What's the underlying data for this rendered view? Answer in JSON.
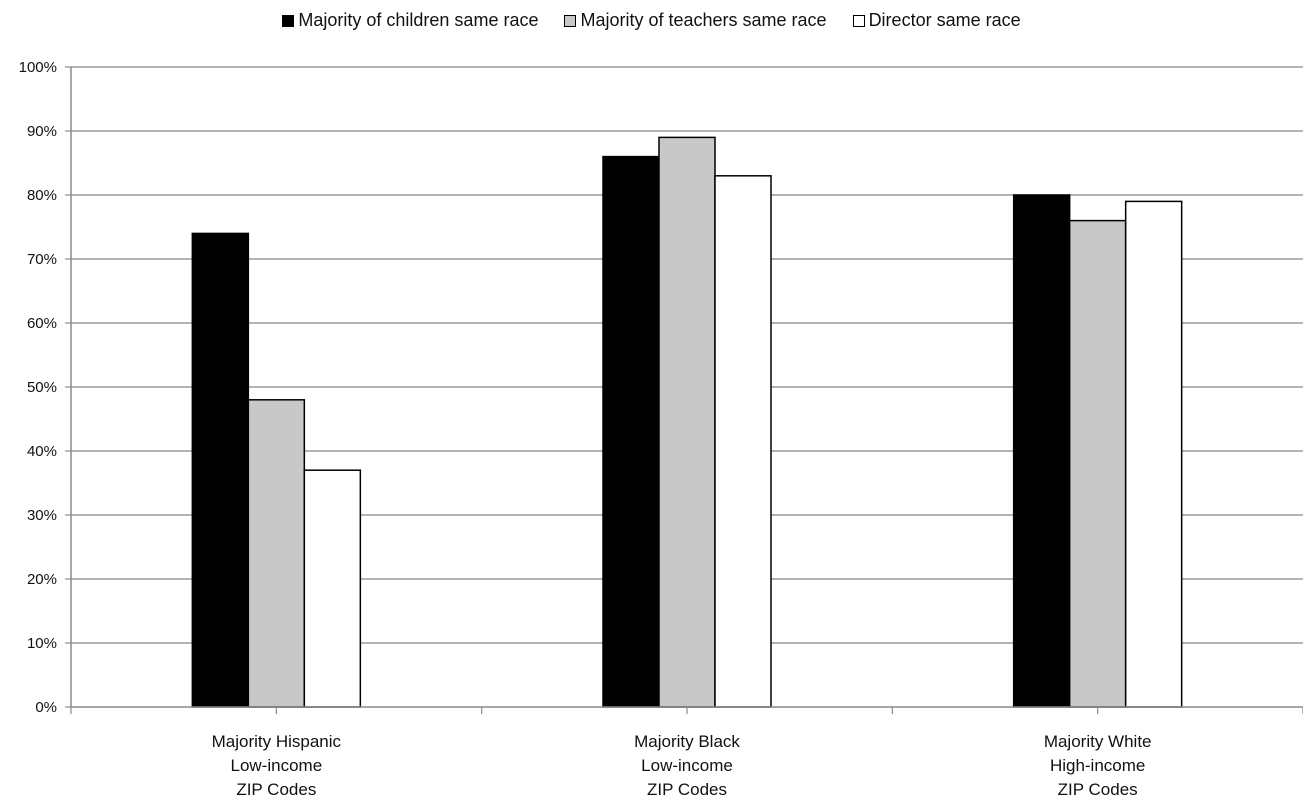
{
  "chart_data": {
    "type": "bar",
    "categories": [
      [
        "Majority Hispanic",
        "Low-income",
        "ZIP Codes"
      ],
      [
        "Majority Black",
        "Low-income",
        "ZIP Codes"
      ],
      [
        "Majority White",
        "High-income",
        "ZIP Codes"
      ]
    ],
    "series": [
      {
        "name": "Majority of children same race",
        "color": "#000000",
        "values": [
          74,
          86,
          80
        ]
      },
      {
        "name": "Majority of teachers same race",
        "color": "#c8c8c8",
        "values": [
          48,
          89,
          76
        ]
      },
      {
        "name": "Director same race",
        "color": "#ffffff",
        "values": [
          37,
          83,
          79
        ]
      }
    ],
    "yticks": [
      "0%",
      "10%",
      "20%",
      "30%",
      "40%",
      "50%",
      "60%",
      "70%",
      "80%",
      "90%",
      "100%"
    ],
    "ylim": [
      0,
      100
    ],
    "grid": true,
    "legend_position": "top-center",
    "title": "",
    "xlabel": "",
    "ylabel": ""
  }
}
